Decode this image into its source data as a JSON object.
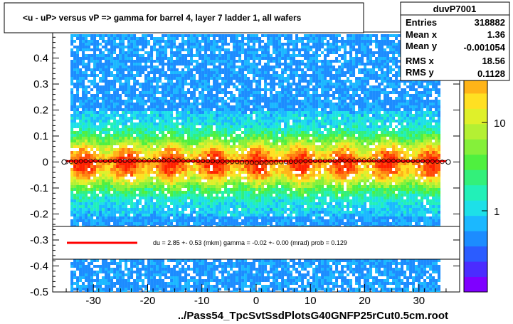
{
  "chart_data": {
    "type": "heatmap",
    "title": "<u - uP>       versus   vP =>  gamma for barrel 4, layer 7 ladder 1, all wafers",
    "xlabel": "../Pass54_TpcSvtSsdPlotsG40GNFP25rCut0.5cm.root",
    "ylabel": "",
    "xlim": [
      -37.5,
      37.5
    ],
    "ylim": [
      -0.5,
      0.5
    ],
    "x_ticks": [
      "-30",
      "-20",
      "-10",
      "0",
      "10",
      "20",
      "30"
    ],
    "y_ticks": [
      "-0.5",
      "-0.4",
      "-0.3",
      "-0.2",
      "-0.1",
      "0",
      "0.1",
      "0.2",
      "0.3",
      "0.4"
    ],
    "y_tick_values": [
      -0.5,
      -0.4,
      -0.3,
      -0.2,
      -0.1,
      0,
      0.1,
      0.2,
      0.3,
      0.4
    ],
    "x_tick_values": [
      -30,
      -20,
      -10,
      0,
      10,
      20,
      30
    ],
    "x_band": [
      -35,
      35
    ],
    "profile_points": [
      {
        "x": -35,
        "y": 0.0
      },
      {
        "x": -30,
        "y": 0.005
      },
      {
        "x": -25,
        "y": 0.004
      },
      {
        "x": -20,
        "y": 0.006
      },
      {
        "x": -15,
        "y": 0.006
      },
      {
        "x": -10,
        "y": 0.004
      },
      {
        "x": -5,
        "y": 0.002
      },
      {
        "x": 0,
        "y": -0.003
      },
      {
        "x": 5,
        "y": 0.0
      },
      {
        "x": 10,
        "y": 0.004
      },
      {
        "x": 15,
        "y": 0.005
      },
      {
        "x": 20,
        "y": 0.006
      },
      {
        "x": 25,
        "y": 0.005
      },
      {
        "x": 30,
        "y": 0.004
      },
      {
        "x": 35,
        "y": 0.0
      }
    ],
    "color_scale": {
      "labels": [
        "1",
        "10",
        "10"
      ],
      "exponent": "2",
      "colors": [
        "#7f00ff",
        "#4b2cff",
        "#2b5cff",
        "#1c8cff",
        "#1bb8ff",
        "#1de0e8",
        "#22f0b8",
        "#33f07a",
        "#4ff03f",
        "#85f03a",
        "#b4f033",
        "#dff02a",
        "#ffe022",
        "#ffb418",
        "#ff8010",
        "#ff4a08",
        "#ff2000"
      ]
    },
    "stats": {
      "name": "duvP7001",
      "rows": [
        {
          "key": "Entries",
          "value": "318882"
        },
        {
          "key": "Mean x",
          "value": "1.36"
        },
        {
          "key": "Mean y",
          "value": "-0.001054"
        },
        {
          "key": "RMS x",
          "value": "18.56"
        },
        {
          "key": "RMS y",
          "value": "0.1128"
        }
      ]
    },
    "legend": {
      "text": "du =     2.85 +-  0.53 (mkm) gamma =    -0.02 +-  0.00 (mrad) prob = 0.129",
      "line_color": "#ff0000"
    }
  }
}
